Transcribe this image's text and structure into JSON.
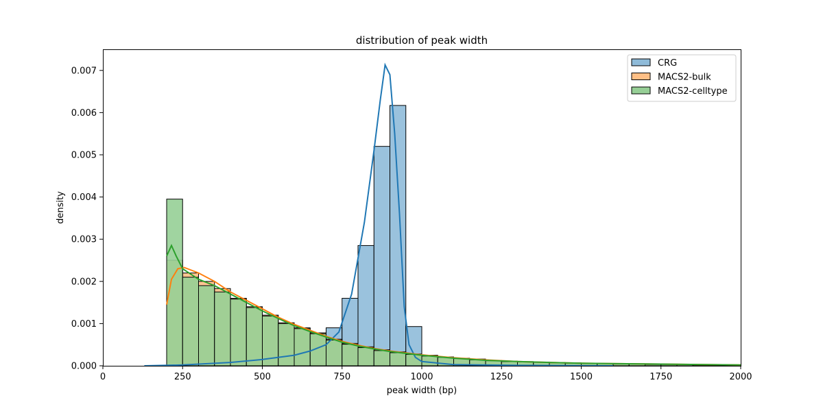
{
  "chart_data": {
    "type": "histogram",
    "title": "distribution of peak width",
    "xlabel": "peak width (bp)",
    "ylabel": "density",
    "xlim": [
      0,
      2000
    ],
    "ylim": [
      0,
      0.0075
    ],
    "xticks": [
      0,
      250,
      500,
      750,
      1000,
      1250,
      1500,
      1750,
      2000
    ],
    "xtick_labels": [
      "0",
      "250",
      "500",
      "750",
      "1000",
      "1250",
      "1500",
      "1750",
      "2000"
    ],
    "yticks": [
      0,
      0.001,
      0.002,
      0.003,
      0.004,
      0.005,
      0.006,
      0.007
    ],
    "ytick_labels": [
      "0.000",
      "0.001",
      "0.002",
      "0.003",
      "0.004",
      "0.005",
      "0.006",
      "0.007"
    ],
    "grid": false,
    "legend_position": "top-right",
    "series": [
      {
        "name": "CRG",
        "color": "#1f77b4",
        "fill": "#8fbbd9",
        "bins": [
          [
            650,
            700,
            5e-05
          ],
          [
            700,
            750,
            0.0009
          ],
          [
            750,
            800,
            0.0016
          ],
          [
            800,
            850,
            0.00285
          ],
          [
            850,
            900,
            0.0052
          ],
          [
            900,
            950,
            0.00617
          ],
          [
            950,
            1000,
            0.00093
          ],
          [
            1000,
            1050,
            0.00015
          ]
        ],
        "kde": [
          [
            130,
            0.0
          ],
          [
            250,
            2e-05
          ],
          [
            400,
            8e-05
          ],
          [
            500,
            0.00015
          ],
          [
            600,
            0.00025
          ],
          [
            650,
            0.00035
          ],
          [
            700,
            0.0005
          ],
          [
            740,
            0.0008
          ],
          [
            780,
            0.0017
          ],
          [
            820,
            0.0034
          ],
          [
            850,
            0.0051
          ],
          [
            870,
            0.0063
          ],
          [
            885,
            0.00713
          ],
          [
            900,
            0.0069
          ],
          [
            915,
            0.0055
          ],
          [
            930,
            0.0036
          ],
          [
            945,
            0.0014
          ],
          [
            960,
            0.0005
          ],
          [
            980,
            0.0002
          ],
          [
            1000,
            0.0001
          ],
          [
            1100,
            3e-05
          ],
          [
            1300,
            1e-05
          ],
          [
            1600,
            0.0
          ]
        ]
      },
      {
        "name": "MACS2-bulk",
        "color": "#ff7f0e",
        "fill": "#ffbf86",
        "bins": [
          [
            200,
            250,
            0.0025
          ],
          [
            250,
            300,
            0.0022
          ],
          [
            300,
            350,
            0.002
          ],
          [
            350,
            400,
            0.00183
          ],
          [
            400,
            450,
            0.0016
          ],
          [
            450,
            500,
            0.0014
          ],
          [
            500,
            550,
            0.0012
          ],
          [
            550,
            600,
            0.00102
          ],
          [
            600,
            650,
            0.0009
          ],
          [
            650,
            700,
            0.00078
          ],
          [
            700,
            750,
            0.00063
          ],
          [
            750,
            800,
            0.00053
          ],
          [
            800,
            850,
            0.00045
          ],
          [
            850,
            900,
            0.00038
          ],
          [
            900,
            950,
            0.00033
          ],
          [
            950,
            1000,
            0.00028
          ],
          [
            1000,
            1050,
            0.00025
          ],
          [
            1050,
            1100,
            0.00021
          ],
          [
            1100,
            1150,
            0.00018
          ],
          [
            1150,
            1200,
            0.00016
          ],
          [
            1200,
            1250,
            0.00013
          ],
          [
            1250,
            1300,
            0.00011
          ],
          [
            1300,
            1350,
            0.0001
          ],
          [
            1350,
            1400,
            9e-05
          ],
          [
            1400,
            1450,
            8e-05
          ],
          [
            1450,
            1500,
            7e-05
          ],
          [
            1500,
            1550,
            6e-05
          ],
          [
            1550,
            1600,
            5e-05
          ],
          [
            1600,
            1650,
            5e-05
          ],
          [
            1650,
            1700,
            4e-05
          ],
          [
            1700,
            1750,
            4e-05
          ],
          [
            1750,
            1800,
            3e-05
          ],
          [
            1800,
            1850,
            3e-05
          ],
          [
            1850,
            1900,
            3e-05
          ],
          [
            1900,
            1950,
            2e-05
          ],
          [
            1950,
            2000,
            2e-05
          ]
        ],
        "kde": [
          [
            200,
            0.00145
          ],
          [
            215,
            0.00205
          ],
          [
            235,
            0.0023
          ],
          [
            255,
            0.00233
          ],
          [
            300,
            0.0022
          ],
          [
            350,
            0.002
          ],
          [
            400,
            0.00175
          ],
          [
            450,
            0.00155
          ],
          [
            500,
            0.00135
          ],
          [
            550,
            0.00115
          ],
          [
            600,
            0.00098
          ],
          [
            650,
            0.00084
          ],
          [
            700,
            0.0007
          ],
          [
            750,
            0.00058
          ],
          [
            800,
            0.00049
          ],
          [
            850,
            0.00041
          ],
          [
            900,
            0.00035
          ],
          [
            1000,
            0.00026
          ],
          [
            1100,
            0.00019
          ],
          [
            1200,
            0.00014
          ],
          [
            1300,
            0.0001
          ],
          [
            1400,
            8e-05
          ],
          [
            1500,
            6e-05
          ],
          [
            1750,
            4e-05
          ],
          [
            2000,
            2e-05
          ]
        ]
      },
      {
        "name": "MACS2-celltype",
        "color": "#2ca02c",
        "fill": "#96cf96",
        "bins": [
          [
            200,
            250,
            0.00395
          ],
          [
            250,
            300,
            0.0021
          ],
          [
            300,
            350,
            0.0019
          ],
          [
            350,
            400,
            0.00175
          ],
          [
            400,
            450,
            0.00158
          ],
          [
            450,
            500,
            0.00138
          ],
          [
            500,
            550,
            0.00118
          ],
          [
            550,
            600,
            0.001
          ],
          [
            600,
            650,
            0.00088
          ],
          [
            650,
            700,
            0.00076
          ],
          [
            700,
            750,
            0.00061
          ],
          [
            750,
            800,
            0.00051
          ],
          [
            800,
            850,
            0.00043
          ],
          [
            850,
            900,
            0.00036
          ],
          [
            900,
            950,
            0.00031
          ],
          [
            950,
            1000,
            0.00027
          ],
          [
            1000,
            1050,
            0.00023
          ],
          [
            1050,
            1100,
            0.0002
          ],
          [
            1100,
            1150,
            0.00017
          ],
          [
            1150,
            1200,
            0.00014
          ],
          [
            1200,
            1250,
            0.00012
          ],
          [
            1250,
            1300,
            0.0001
          ],
          [
            1300,
            1350,
            9e-05
          ],
          [
            1350,
            1400,
            8e-05
          ],
          [
            1400,
            1450,
            7e-05
          ],
          [
            1450,
            1500,
            6e-05
          ],
          [
            1500,
            1550,
            6e-05
          ],
          [
            1550,
            1600,
            5e-05
          ],
          [
            1600,
            1650,
            4e-05
          ],
          [
            1650,
            1700,
            4e-05
          ],
          [
            1700,
            1750,
            3e-05
          ],
          [
            1750,
            1800,
            3e-05
          ],
          [
            1800,
            1850,
            3e-05
          ],
          [
            1850,
            1900,
            2e-05
          ],
          [
            1900,
            1950,
            2e-05
          ],
          [
            1950,
            2000,
            2e-05
          ]
        ],
        "kde": [
          [
            200,
            0.0026
          ],
          [
            215,
            0.00285
          ],
          [
            230,
            0.0026
          ],
          [
            250,
            0.0023
          ],
          [
            300,
            0.00205
          ],
          [
            350,
            0.0019
          ],
          [
            400,
            0.0017
          ],
          [
            450,
            0.0015
          ],
          [
            500,
            0.0013
          ],
          [
            550,
            0.00112
          ],
          [
            600,
            0.00095
          ],
          [
            650,
            0.00081
          ],
          [
            700,
            0.00068
          ],
          [
            750,
            0.00056
          ],
          [
            800,
            0.00047
          ],
          [
            850,
            0.0004
          ],
          [
            900,
            0.00034
          ],
          [
            1000,
            0.00025
          ],
          [
            1100,
            0.00018
          ],
          [
            1200,
            0.00013
          ],
          [
            1300,
            0.0001
          ],
          [
            1400,
            8e-05
          ],
          [
            1500,
            6e-05
          ],
          [
            1750,
            4e-05
          ],
          [
            2000,
            2e-05
          ]
        ]
      }
    ]
  }
}
